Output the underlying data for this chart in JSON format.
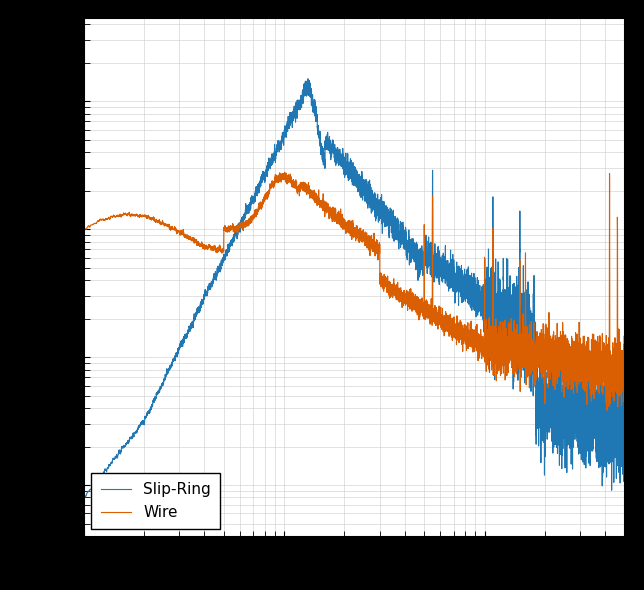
{
  "title": "",
  "xlabel": "",
  "ylabel": "",
  "legend_labels": [
    "Slip-Ring",
    "Wire"
  ],
  "colors": [
    "#1f77b4",
    "#d95f02"
  ],
  "line_width": 0.8,
  "legend_loc": "lower left",
  "background_color": "#ffffff",
  "outer_background": "#000000",
  "grid_color": "#cccccc",
  "grid_alpha": 0.8
}
